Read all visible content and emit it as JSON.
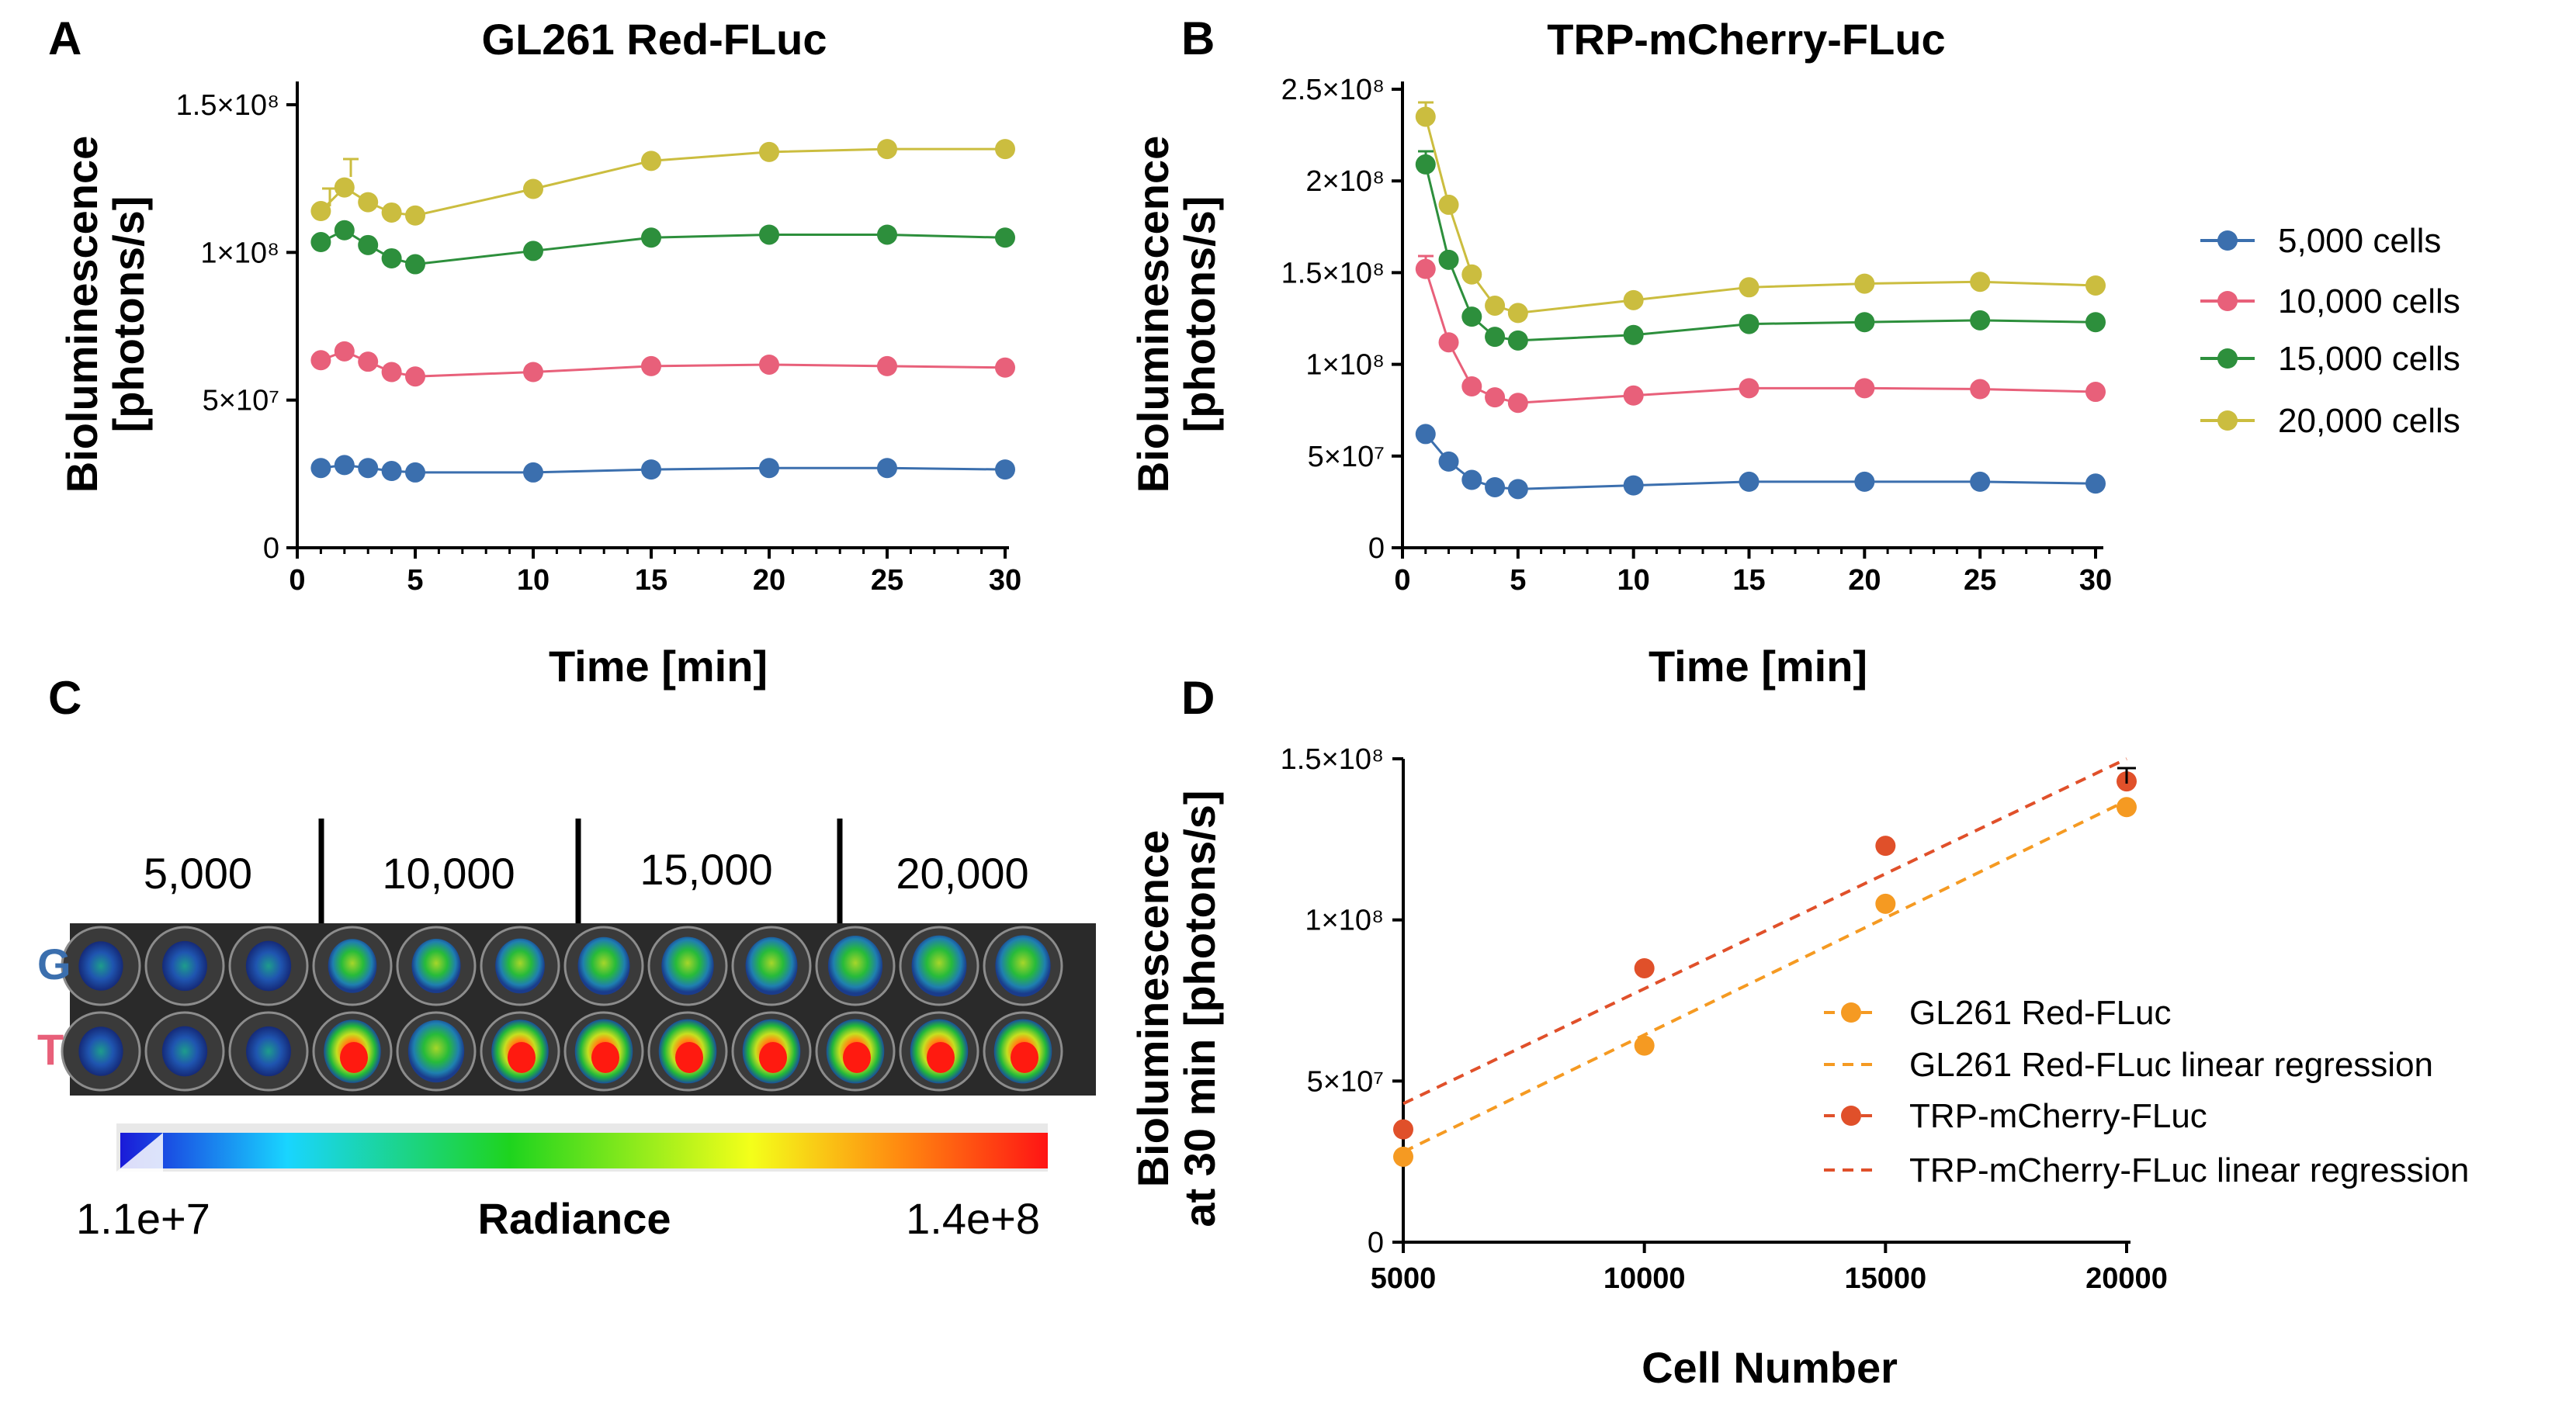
{
  "chart_data": [
    {
      "panel": "A",
      "type": "line",
      "title": "GL261 Red-FLuc",
      "xlabel": "Time [min]",
      "ylabel": [
        "Bioluminescence",
        "[photons/s]"
      ],
      "xlim": [
        0,
        30
      ],
      "ylim": [
        0,
        150000000
      ],
      "xticks": [
        "0",
        "5",
        "10",
        "15",
        "20",
        "25",
        "30"
      ],
      "yticks": [
        "0",
        "5×10⁷",
        "1×10⁸",
        "1.5×10⁸"
      ],
      "x": [
        1,
        2,
        3,
        4,
        5,
        10,
        15,
        20,
        25,
        30
      ],
      "grid": false,
      "series": [
        {
          "ref": 0,
          "color": "#3b6fae",
          "values": [
            27000000,
            28000000,
            27000000,
            26000000,
            25500000,
            25500000,
            26500000,
            27000000,
            27000000,
            26500000
          ]
        },
        {
          "ref": 1,
          "color": "#e8607a",
          "values": [
            63500000,
            66500000,
            63000000,
            59500000,
            58000000,
            59500000,
            61500000,
            62000000,
            61500000,
            61000000
          ]
        },
        {
          "ref": 2,
          "color": "#2d8f3c",
          "values": [
            103500000,
            107500000,
            102500000,
            98000000,
            96000000,
            100500000,
            105000000,
            106000000,
            106000000,
            105000000
          ]
        },
        {
          "ref": 3,
          "color": "#cbbd3f",
          "values": [
            114000000,
            122000000,
            117000000,
            113500000,
            112500000,
            121500000,
            131000000,
            134000000,
            135000000,
            135000000
          ]
        }
      ]
    },
    {
      "panel": "B",
      "type": "line",
      "title": "TRP-mCherry-FLuc",
      "xlabel": "Time [min]",
      "ylabel": [
        "Bioluminescence",
        "[photons/s]"
      ],
      "xlim": [
        0,
        30
      ],
      "ylim": [
        0,
        250000000
      ],
      "xticks": [
        "0",
        "5",
        "10",
        "15",
        "20",
        "25",
        "30"
      ],
      "yticks": [
        "0",
        "5×10⁷",
        "1×10⁸",
        "1.5×10⁸",
        "2×10⁸",
        "2.5×10⁸"
      ],
      "x": [
        1,
        2,
        3,
        4,
        5,
        10,
        15,
        20,
        25,
        30
      ],
      "grid": false,
      "legend_position": "right",
      "legend": [
        "5,000 cells",
        "10,000 cells",
        "15,000 cells",
        "20,000 cells"
      ],
      "series": [
        {
          "name": "5,000 cells",
          "color": "#3b6fae",
          "values": [
            62000000,
            47000000,
            37000000,
            33000000,
            32000000,
            34000000,
            36000000,
            36000000,
            36000000,
            35000000
          ]
        },
        {
          "name": "10,000 cells",
          "color": "#e8607a",
          "values": [
            152000000,
            112000000,
            88000000,
            82000000,
            79000000,
            83000000,
            87000000,
            87000000,
            86500000,
            85000000
          ]
        },
        {
          "name": "15,000 cells",
          "color": "#2d8f3c",
          "values": [
            209000000,
            157000000,
            126000000,
            115000000,
            113000000,
            116000000,
            122000000,
            123000000,
            124000000,
            123000000
          ]
        },
        {
          "name": "20,000 cells",
          "color": "#cbbd3f",
          "values": [
            235000000,
            187000000,
            149000000,
            132000000,
            128000000,
            135000000,
            142000000,
            144000000,
            145000000,
            143000000
          ]
        }
      ]
    },
    {
      "panel": "D",
      "type": "scatter",
      "xlabel": "Cell Number",
      "ylabel": [
        "Bioluminescence",
        "at 30 min [photons/s]"
      ],
      "xlim": [
        5000,
        20000
      ],
      "ylim": [
        0,
        150000000
      ],
      "xticks": [
        "5000",
        "10000",
        "15000",
        "20000"
      ],
      "yticks": [
        "0",
        "5×10⁷",
        "1×10⁸",
        "1.5×10⁸"
      ],
      "x": [
        5000,
        10000,
        15000,
        20000
      ],
      "grid": false,
      "legend_position": "lower-right",
      "legend": [
        "GL261 Red-FLuc",
        "GL261 Red-FLuc linear regression",
        "TRP-mCherry-FLuc",
        "TRP-mCherry-FLuc linear regression"
      ],
      "series": [
        {
          "name": "GL261 Red-FLuc",
          "color": "#f59a22",
          "values": [
            26500000,
            61000000,
            105000000,
            135000000
          ],
          "regression_name": "GL261 Red-FLuc linear regression",
          "regression_endpoints": [
            [
              5000,
              28000000
            ],
            [
              20000,
              137000000
            ]
          ]
        },
        {
          "name": "TRP-mCherry-FLuc",
          "color": "#e0502a",
          "values": [
            35000000,
            85000000,
            123000000,
            143000000
          ],
          "regression_name": "TRP-mCherry-FLuc linear regression",
          "regression_endpoints": [
            [
              5000,
              43000000
            ],
            [
              20000,
              150000000
            ]
          ]
        }
      ]
    }
  ],
  "panel_c": {
    "letter": "C",
    "groups": [
      "5,000",
      "10,000",
      "15,000",
      "20,000"
    ],
    "rows": [
      "G",
      "T"
    ],
    "row_colors": {
      "G": "#3b6fae",
      "T": "#e8607a"
    },
    "colorbar_min": "1.1e+7",
    "colorbar_max": "1.4e+8",
    "colorbar_label": "Radiance",
    "intensity_G": [
      0.15,
      0.18,
      0.2,
      0.4,
      0.42,
      0.45,
      0.6,
      0.62,
      0.6,
      0.75,
      0.78,
      0.8
    ],
    "intensity_T": [
      0.15,
      0.2,
      0.18,
      0.9,
      0.85,
      0.9,
      0.95,
      0.95,
      0.95,
      0.95,
      0.95,
      0.95
    ]
  },
  "letters": {
    "A": "A",
    "B": "B",
    "D": "D"
  }
}
